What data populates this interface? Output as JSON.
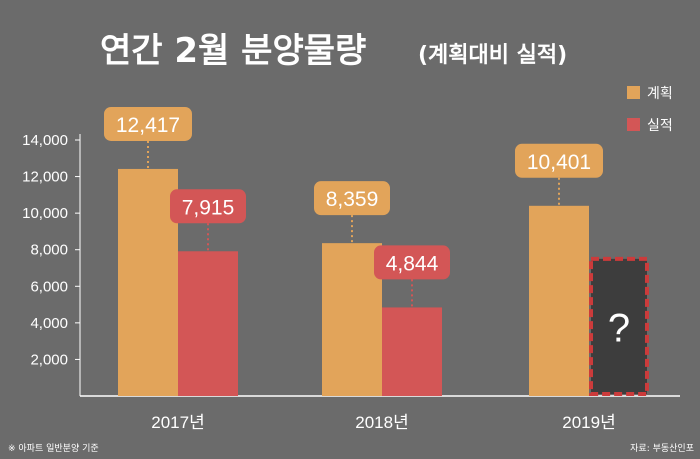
{
  "title": "연간 2월 분양물량",
  "subtitle": "(계획대비 실적)",
  "footnote_left": "※ 아파트 일반분양 기준",
  "footnote_right": "자료: 부동산인포",
  "colors": {
    "background": "#6b6b6b",
    "plan": "#e2a45a",
    "actual": "#d35656",
    "unknown_fill": "#3d3d3d",
    "unknown_border": "#cc3b3b"
  },
  "chart_data": {
    "type": "bar",
    "categories": [
      "2017년",
      "2018년",
      "2019년"
    ],
    "series": [
      {
        "name": "계획",
        "values": [
          12417,
          8359,
          10401
        ],
        "labels": [
          "12,417",
          "8,359",
          "10,401"
        ]
      },
      {
        "name": "실적",
        "values": [
          7915,
          4844,
          null
        ],
        "labels": [
          "7,915",
          "4,844",
          ""
        ]
      }
    ],
    "unknown_marker": {
      "category": "2019년",
      "series": "실적",
      "text": "?",
      "display_value": 7500
    },
    "yticks": [
      "2,000",
      "4,000",
      "6,000",
      "8,000",
      "10,000",
      "12,000",
      "14,000"
    ],
    "ylim": [
      0,
      14000
    ],
    "legend_position": "top-right",
    "grid": false
  }
}
